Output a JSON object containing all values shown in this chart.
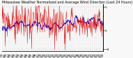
{
  "title": "Milwaukee Weather Normalized and Average Wind Direction (Last 24 Hours)",
  "bg_color": "#f8f8f8",
  "grid_color": "#bbbbbb",
  "num_points": 288,
  "ylim": [
    -4.5,
    5.5
  ],
  "yticks": [
    5,
    0,
    -4
  ],
  "red_line_color": "#dd0000",
  "blue_line_color": "#0000cc",
  "axis_color": "#000000",
  "tick_label_fontsize": 3.2,
  "title_fontsize": 3.5,
  "red_mean": 1.8,
  "red_std_early": 2.2,
  "red_std_late": 1.3,
  "blue_mean": 1.0,
  "blue_smooth": 8
}
